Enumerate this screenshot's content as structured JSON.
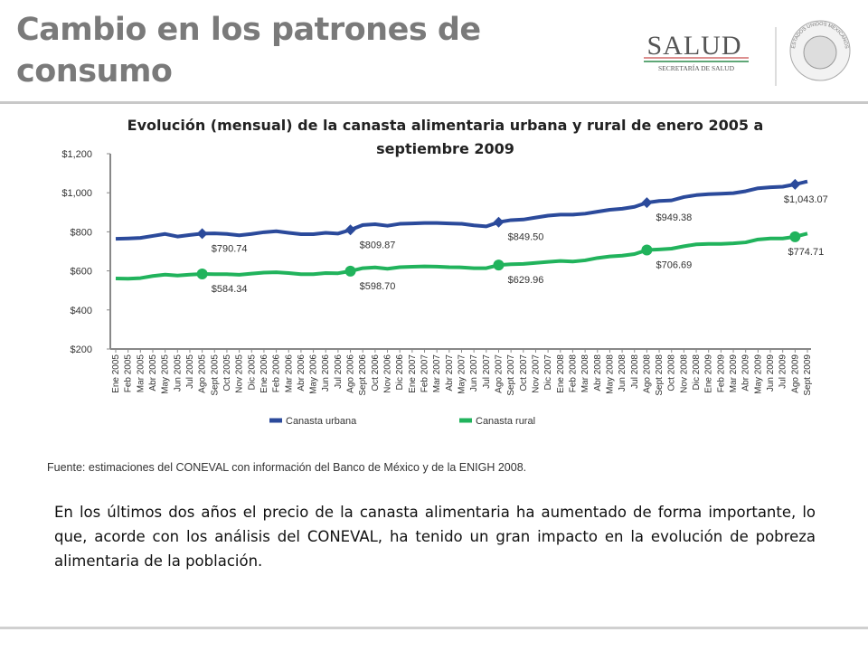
{
  "header": {
    "title": "Cambio en los patrones de consumo",
    "logo_text": "SALUD",
    "logo_subtext": "SECRETARÍA DE SALUD",
    "seal_text": "ESTADOS UNIDOS MEXICANOS"
  },
  "chart_data": {
    "type": "line",
    "title": "Evolución (mensual) de la canasta alimentaria urbana y rural de enero 2005 a septiembre 2009",
    "categories": [
      "Ene 2005",
      "Feb 2005",
      "Mar 2005",
      "Abr 2005",
      "May 2005",
      "Jun 2005",
      "Jul 2005",
      "Ago 2005",
      "Sept 2005",
      "Oct 2005",
      "Nov 2005",
      "Dic 2005",
      "Ene 2006",
      "Feb 2006",
      "Mar 2006",
      "Abr 2006",
      "May 2006",
      "Jun 2006",
      "Jul 2006",
      "Ago 2006",
      "Sept 2006",
      "Oct 2006",
      "Nov 2006",
      "Dic 2006",
      "Ene 2007",
      "Feb 2007",
      "Mar 2007",
      "Abr 2007",
      "May 2007",
      "Jun 2007",
      "Jul 2007",
      "Ago 2007",
      "Sept 2007",
      "Oct 2007",
      "Nov 2007",
      "Dic 2007",
      "Ene 2008",
      "Feb 2008",
      "Mar 2008",
      "Abr 2008",
      "May 2008",
      "Jun 2008",
      "Jul 2008",
      "Ago 2008",
      "Sept 2008",
      "Oct 2008",
      "Nov 2008",
      "Dic 2008",
      "Ene 2009",
      "Feb 2009",
      "Mar 2009",
      "Abr 2009",
      "May 2009",
      "Jun 2009",
      "Jul 2009",
      "Ago 2009",
      "Sept 2009"
    ],
    "series": [
      {
        "name": "Canasta urbana",
        "color": "#2b4a9b",
        "values": [
          764,
          766,
          769,
          779,
          789,
          776,
          784,
          790.74,
          792,
          789,
          782,
          789,
          798,
          803,
          795,
          788,
          788,
          795,
          791,
          809.87,
          835,
          839,
          831,
          841,
          843,
          845,
          845,
          843,
          841,
          833,
          828,
          849.5,
          860,
          863,
          873,
          883,
          888,
          888,
          893,
          903,
          913,
          918,
          928,
          949.38,
          958,
          961,
          978,
          988,
          993,
          995,
          998,
          1008,
          1023,
          1028,
          1031,
          1043.07,
          1058
        ],
        "value_labels": [
          null,
          null,
          null,
          null,
          null,
          null,
          null,
          "$790.74",
          null,
          null,
          null,
          null,
          null,
          null,
          null,
          null,
          null,
          null,
          null,
          "$809.87",
          null,
          null,
          null,
          null,
          null,
          null,
          null,
          null,
          null,
          null,
          null,
          "$849.50",
          null,
          null,
          null,
          null,
          null,
          null,
          null,
          null,
          null,
          null,
          null,
          "$949.38",
          null,
          null,
          null,
          null,
          null,
          null,
          null,
          null,
          null,
          null,
          null,
          "$1,043.07",
          null
        ]
      },
      {
        "name": "Canasta rural",
        "color": "#21b35c",
        "values": [
          561,
          560,
          563,
          574,
          581,
          576,
          581,
          584.34,
          583,
          583,
          580,
          586,
          591,
          593,
          589,
          583,
          583,
          589,
          588,
          598.7,
          614,
          618,
          611,
          619,
          621,
          623,
          622,
          619,
          618,
          614,
          614,
          629.96,
          634,
          636,
          641,
          646,
          651,
          648,
          654,
          666,
          674,
          678,
          686,
          706.69,
          710,
          714,
          726,
          736,
          738,
          738,
          741,
          746,
          761,
          766,
          766,
          774.71,
          791
        ],
        "value_labels": [
          null,
          null,
          null,
          null,
          null,
          null,
          null,
          "$584.34",
          null,
          null,
          null,
          null,
          null,
          null,
          null,
          null,
          null,
          null,
          null,
          "$598.70",
          null,
          null,
          null,
          null,
          null,
          null,
          null,
          null,
          null,
          null,
          null,
          "$629.96",
          null,
          null,
          null,
          null,
          null,
          null,
          null,
          null,
          null,
          null,
          null,
          "$706.69",
          null,
          null,
          null,
          null,
          null,
          null,
          null,
          null,
          null,
          null,
          null,
          "$774.71",
          null
        ]
      }
    ],
    "ylim": [
      200,
      1200
    ],
    "yticks": [
      {
        "value": 200,
        "label": "$200"
      },
      {
        "value": 400,
        "label": "$400"
      },
      {
        "value": 600,
        "label": "$600"
      },
      {
        "value": 800,
        "label": "$800"
      },
      {
        "value": 1000,
        "label": "$1,000"
      },
      {
        "value": 1200,
        "label": "$1,200"
      }
    ],
    "grid": false,
    "legend": "bottom",
    "source": "Fuente: estimaciones del CONEVAL con información del Banco de México y de la ENIGH 2008."
  },
  "body": {
    "paragraph": "En los últimos dos años el precio de la canasta alimentaria ha aumentado de forma importante, lo que, acorde con los análisis del CONEVAL, ha tenido un gran impacto en la evolución de pobreza alimentaria de la población."
  }
}
